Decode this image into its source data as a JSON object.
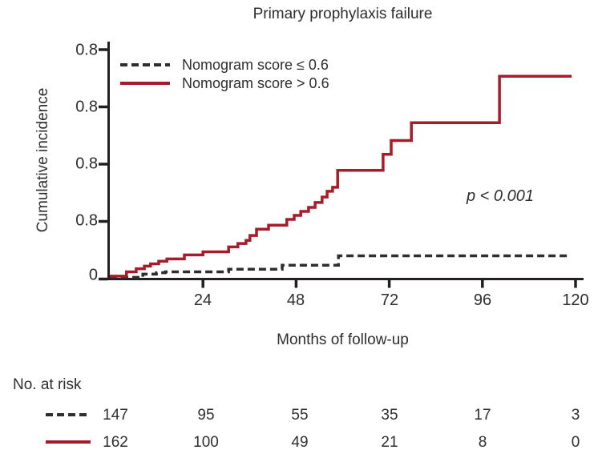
{
  "title": "Primary prophylaxis failure",
  "colors": {
    "red": "#a61c28",
    "ink": "#2e2e2e",
    "axis": "#231f20"
  },
  "legend": {
    "items": [
      {
        "label": "Nomogram score ≤ 0.6",
        "line_style": "dashed",
        "color": "#2e2e2e"
      },
      {
        "label": "Nomogram score > 0.6",
        "line_style": "solid",
        "color": "#a61c28"
      }
    ]
  },
  "annotation": {
    "p_value": "p < 0.001"
  },
  "yaxis": {
    "label": "Cumulative incidence",
    "ticks": [
      "0.8",
      "0.8",
      "0.8",
      "0.8",
      "0"
    ]
  },
  "xaxis": {
    "label": "Months of follow-up",
    "ticks": [
      "24",
      "48",
      "72",
      "96",
      "120"
    ]
  },
  "risk_table": {
    "heading": "No. at risk",
    "rows": [
      {
        "series": "Nomogram score ≤ 0.6",
        "line_style": "dashed",
        "counts": [
          "147",
          "95",
          "55",
          "35",
          "17",
          "3"
        ]
      },
      {
        "series": "Nomogram score > 0.6",
        "line_style": "solid",
        "counts": [
          "162",
          "100",
          "49",
          "21",
          "8",
          "0"
        ]
      }
    ]
  },
  "chart_data": {
    "type": "line",
    "subtype": "step-after",
    "title": "Primary prophylaxis failure",
    "xlabel": "Months of follow-up",
    "ylabel": "Cumulative incidence",
    "xlim": [
      0,
      120
    ],
    "x_tick_values": [
      24,
      48,
      72,
      96,
      120
    ],
    "y_tick_labels_as_shown": [
      "0",
      "0.8",
      "0.8",
      "0.8",
      "0.8"
    ],
    "y_top_tick_value": 0.8,
    "grid": false,
    "legend_position": "upper-left-inside",
    "annotation_text": "p < 0.001",
    "series": [
      {
        "name": "Nomogram score ≤ 0.6",
        "line_style": "dashed",
        "color": "#2e2e2e",
        "x": [
          0,
          8.5,
          12,
          14.3,
          30.6,
          44.4,
          58.9,
          118.3
        ],
        "y": [
          0.006,
          0.017,
          0.022,
          0.025,
          0.034,
          0.048,
          0.081,
          0.081
        ]
      },
      {
        "name": "Nomogram score > 0.6",
        "line_style": "solid",
        "color": "#a61c28",
        "x": [
          0,
          4.3,
          6.8,
          8.9,
          10.5,
          12.6,
          14.7,
          19.2,
          24,
          30.6,
          33,
          35.1,
          36.1,
          37.8,
          40.9,
          45.6,
          47.5,
          49.2,
          51.2,
          52.9,
          54.7,
          56,
          57.4,
          58.7,
          70.4,
          72.5,
          77.7,
          100.4,
          119
        ],
        "y": [
          0.01,
          0.025,
          0.036,
          0.045,
          0.053,
          0.062,
          0.07,
          0.084,
          0.095,
          0.112,
          0.124,
          0.135,
          0.152,
          0.174,
          0.188,
          0.208,
          0.222,
          0.236,
          0.25,
          0.267,
          0.286,
          0.306,
          0.32,
          0.379,
          0.435,
          0.483,
          0.545,
          0.707,
          0.707
        ]
      }
    ],
    "at_risk": {
      "times": [
        0,
        24,
        48,
        72,
        96,
        120
      ],
      "groups": [
        {
          "name": "Nomogram score ≤ 0.6",
          "counts": [
            147,
            95,
            55,
            35,
            17,
            3
          ]
        },
        {
          "name": "Nomogram score > 0.6",
          "counts": [
            162,
            100,
            49,
            21,
            8,
            0
          ]
        }
      ]
    }
  }
}
